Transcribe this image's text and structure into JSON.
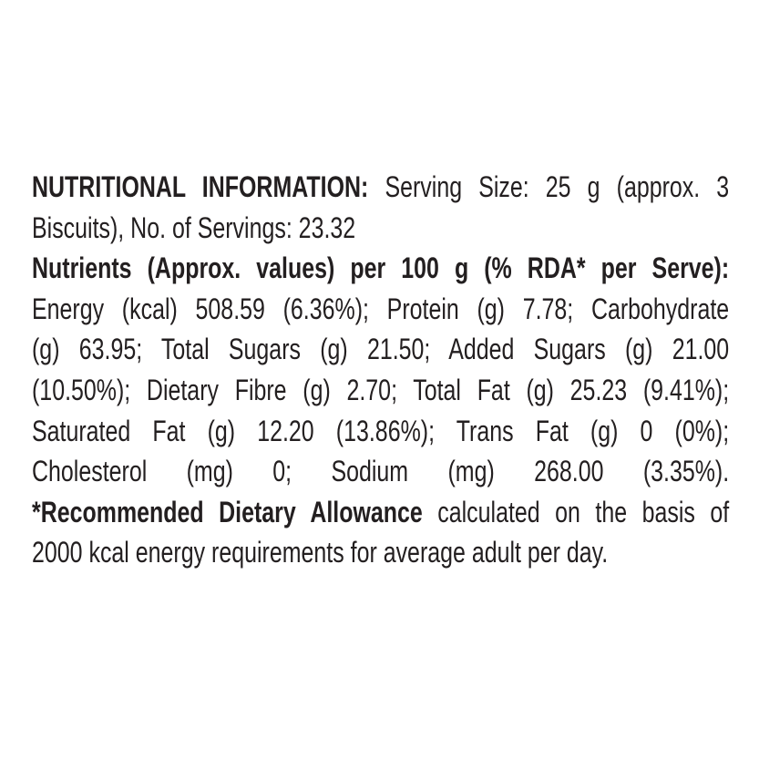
{
  "lines": [
    [
      {
        "bold": true,
        "text": "NUTRITIONAL INFORMATION:"
      },
      {
        "bold": false,
        "text": " Serving Size: 25 g (approx. 3"
      }
    ],
    [
      {
        "bold": false,
        "text": "Biscuits), No. of Servings: 23.32"
      }
    ],
    [
      {
        "bold": true,
        "text": "Nutrients (Approx. values) per 100 g (% RDA* per Serve):"
      }
    ],
    [
      {
        "bold": false,
        "text": "Energy (kcal) 508.59 (6.36%); Protein (g) 7.78; Carbohydrate"
      }
    ],
    [
      {
        "bold": false,
        "text": "(g) 63.95; Total Sugars (g) 21.50; Added Sugars (g) 21.00"
      }
    ],
    [
      {
        "bold": false,
        "text": "(10.50%); Dietary Fibre (g) 2.70; Total Fat (g) 25.23 (9.41%);"
      }
    ],
    [
      {
        "bold": false,
        "text": "Saturated Fat (g) 12.20 (13.86%); Trans Fat (g) 0 (0%);"
      }
    ],
    [
      {
        "bold": false,
        "text": "Cholesterol (mg) 0; Sodium (mg) 268.00 (3.35%)."
      }
    ],
    [
      {
        "bold": true,
        "text": "*Recommended Dietary Allowance"
      },
      {
        "bold": false,
        "text": " calculated on the basis of"
      }
    ],
    [
      {
        "bold": false,
        "text": "2000 kcal energy requirements for average adult per day."
      }
    ]
  ],
  "text_color": "#231f20"
}
